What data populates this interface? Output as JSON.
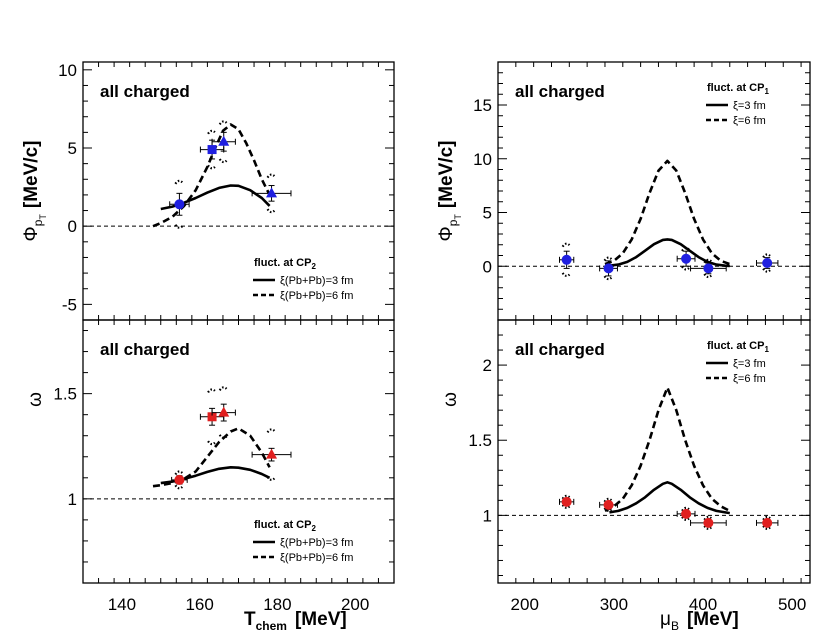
{
  "chart_data": [
    {
      "id": "top-left",
      "type": "scatter",
      "panel_label": "all charged",
      "ylabel": "Φ_pT [MeV/c]",
      "ylabel_main": "Φ",
      "ylabel_sub": "p",
      "ylabel_subsub": "T",
      "ylabel_unit": "[MeV/c]",
      "xlim": [
        130,
        210
      ],
      "ylim": [
        -6,
        10.5
      ],
      "xticks": [
        140,
        160,
        180,
        200
      ],
      "yticks": [
        -5,
        0,
        5,
        10
      ],
      "show_xtick_labels": false,
      "reference_line": 0,
      "legend": {
        "title": "fluct. at CP",
        "title_sub": "2",
        "entries": [
          "ξ(Pb+Pb)=3 fm",
          "ξ(Pb+Pb)=6 fm"
        ],
        "position": "bottom-right"
      },
      "points": [
        {
          "x": 154.8,
          "y": 1.4,
          "xerr": 2.5,
          "yerr": 0.7,
          "sys": 1.5,
          "marker": "circle",
          "color": "#1f1fe0"
        },
        {
          "x": 163.2,
          "y": 4.9,
          "xerr": 3.0,
          "yerr": 0.6,
          "sys": 1.2,
          "marker": "square",
          "color": "#1f1fe0"
        },
        {
          "x": 166.2,
          "y": 5.4,
          "xerr": 3.0,
          "yerr": 0.6,
          "sys": 1.3,
          "marker": "triangle",
          "color": "#1f1fe0"
        },
        {
          "x": 178.5,
          "y": 2.1,
          "xerr": 5.0,
          "yerr": 0.5,
          "sys": 1.2,
          "marker": "triangle",
          "color": "#1f1fe0"
        }
      ],
      "series": [
        {
          "name": "ξ(Pb+Pb)=3 fm",
          "style": "solid",
          "x": [
            150,
            153,
            156,
            159,
            162,
            165,
            168,
            170,
            173,
            176,
            178
          ],
          "y": [
            1.1,
            1.25,
            1.5,
            1.8,
            2.15,
            2.45,
            2.6,
            2.58,
            2.3,
            1.8,
            1.3
          ]
        },
        {
          "name": "ξ(Pb+Pb)=6 fm",
          "style": "dashed",
          "x": [
            148,
            150,
            153,
            156,
            159,
            162,
            164,
            166,
            168,
            170,
            172,
            174,
            176,
            178
          ],
          "y": [
            0,
            0.2,
            0.6,
            1.3,
            2.3,
            3.8,
            5.0,
            6.1,
            6.5,
            6.2,
            5.3,
            4.2,
            3.0,
            2.0
          ]
        }
      ]
    },
    {
      "id": "top-right",
      "type": "scatter",
      "panel_label": "all charged",
      "ylabel": "Φ_pT [MeV/c]",
      "ylabel_main": "Φ",
      "ylabel_sub": "p",
      "ylabel_subsub": "T",
      "ylabel_unit": "[MeV/c]",
      "xlim": [
        170,
        520
      ],
      "ylim": [
        -5,
        19
      ],
      "xticks": [
        200,
        300,
        400,
        500
      ],
      "yticks": [
        0,
        5,
        10,
        15
      ],
      "show_xtick_labels": false,
      "reference_line": 0,
      "legend": {
        "title": "fluct. at CP",
        "title_sub": "1",
        "entries": [
          "ξ=3 fm",
          "ξ=6 fm"
        ],
        "position": "top-right"
      },
      "points": [
        {
          "x": 247,
          "y": 0.6,
          "xerr": 8,
          "yerr": 0.8,
          "sys": 1.5,
          "marker": "circle",
          "color": "#1f1fe0"
        },
        {
          "x": 294,
          "y": -0.2,
          "xerr": 10,
          "yerr": 0.7,
          "sys": 1.0,
          "marker": "circle",
          "color": "#1f1fe0"
        },
        {
          "x": 381,
          "y": 0.7,
          "xerr": 10,
          "yerr": 0.7,
          "sys": 1.0,
          "marker": "circle",
          "color": "#1f1fe0"
        },
        {
          "x": 406,
          "y": -0.2,
          "xerr": 20,
          "yerr": 0.5,
          "sys": 0.8,
          "marker": "circle",
          "color": "#1f1fe0"
        },
        {
          "x": 472,
          "y": 0.3,
          "xerr": 12,
          "yerr": 0.5,
          "sys": 0.8,
          "marker": "circle",
          "color": "#1f1fe0"
        }
      ],
      "series": [
        {
          "name": "ξ=3 fm",
          "style": "solid",
          "x": [
            295,
            305,
            315,
            325,
            335,
            345,
            355,
            360,
            365,
            375,
            385,
            395,
            405,
            415,
            425,
            430
          ],
          "y": [
            0.05,
            0.15,
            0.4,
            0.85,
            1.45,
            2.05,
            2.45,
            2.5,
            2.45,
            2.05,
            1.45,
            0.85,
            0.4,
            0.15,
            0.05,
            0.03
          ]
        },
        {
          "name": "ξ=6 fm",
          "style": "dashed",
          "x": [
            290,
            300,
            310,
            320,
            330,
            340,
            350,
            360,
            370,
            380,
            390,
            400,
            410,
            420,
            430
          ],
          "y": [
            0.2,
            0.5,
            1.2,
            2.5,
            4.4,
            6.8,
            8.9,
            9.8,
            8.9,
            6.8,
            4.4,
            2.5,
            1.2,
            0.5,
            0.2
          ]
        }
      ]
    },
    {
      "id": "bottom-left",
      "type": "scatter",
      "panel_label": "all charged",
      "ylabel": "ω",
      "xlabel": "T_chem [MeV]",
      "xlabel_main": "T",
      "xlabel_sub": "chem",
      "xlabel_unit": "[MeV]",
      "xlim": [
        130,
        210
      ],
      "ylim": [
        0.6,
        1.85
      ],
      "xticks": [
        140,
        160,
        180,
        200
      ],
      "xtick_labels": [
        "140",
        "160",
        "180",
        "200"
      ],
      "yticks": [
        1,
        1.5
      ],
      "ytick_labels": [
        "1",
        "1.5"
      ],
      "show_xtick_labels": true,
      "reference_line": 1,
      "legend": {
        "title": "fluct. at CP",
        "title_sub": "2",
        "entries": [
          "ξ(Pb+Pb)=3 fm",
          "ξ(Pb+Pb)=6 fm"
        ],
        "position": "bottom-right"
      },
      "points": [
        {
          "x": 154.8,
          "y": 1.09,
          "xerr": 2.0,
          "yerr": 0.02,
          "sys": 0.04,
          "marker": "circle",
          "color": "#e01f1f"
        },
        {
          "x": 163.2,
          "y": 1.39,
          "xerr": 3.0,
          "yerr": 0.04,
          "sys": 0.13,
          "marker": "square",
          "color": "#e01f1f"
        },
        {
          "x": 166.2,
          "y": 1.41,
          "xerr": 3.0,
          "yerr": 0.04,
          "sys": 0.12,
          "marker": "triangle",
          "color": "#e01f1f"
        },
        {
          "x": 178.5,
          "y": 1.21,
          "xerr": 5.0,
          "yerr": 0.03,
          "sys": 0.12,
          "marker": "triangle",
          "color": "#e01f1f"
        }
      ],
      "series": [
        {
          "name": "ξ(Pb+Pb)=3 fm",
          "style": "solid",
          "x": [
            150,
            153,
            156,
            159,
            162,
            165,
            168,
            170,
            173,
            176,
            178
          ],
          "y": [
            1.075,
            1.082,
            1.095,
            1.11,
            1.128,
            1.143,
            1.15,
            1.148,
            1.138,
            1.118,
            1.1
          ]
        },
        {
          "name": "ξ(Pb+Pb)=6 fm",
          "style": "dashed",
          "x": [
            148,
            150,
            153,
            156,
            159,
            162,
            165,
            168,
            170,
            173,
            176,
            178
          ],
          "y": [
            1.06,
            1.065,
            1.075,
            1.095,
            1.13,
            1.2,
            1.27,
            1.32,
            1.335,
            1.3,
            1.22,
            1.15
          ]
        }
      ]
    },
    {
      "id": "bottom-right",
      "type": "scatter",
      "panel_label": "all charged",
      "ylabel": "ω",
      "xlabel": "μ_B [MeV]",
      "xlabel_main": "μ",
      "xlabel_sub": "B",
      "xlabel_unit": "[MeV]",
      "xlim": [
        170,
        520
      ],
      "ylim": [
        0.55,
        2.3
      ],
      "xticks": [
        200,
        300,
        400,
        500
      ],
      "xtick_labels": [
        "200",
        "300",
        "400",
        "500"
      ],
      "yticks": [
        1,
        1.5,
        2
      ],
      "ytick_labels": [
        "1",
        "1.5",
        "2"
      ],
      "show_xtick_labels": true,
      "reference_line": 1,
      "legend": {
        "title": "fluct. at CP",
        "title_sub": "1",
        "entries": [
          "ξ=3 fm",
          "ξ=6 fm"
        ],
        "position": "top-right"
      },
      "points": [
        {
          "x": 247,
          "y": 1.09,
          "xerr": 8,
          "yerr": 0.02,
          "sys": 0.04,
          "marker": "circle",
          "color": "#e01f1f"
        },
        {
          "x": 294,
          "y": 1.07,
          "xerr": 10,
          "yerr": 0.02,
          "sys": 0.04,
          "marker": "circle",
          "color": "#e01f1f"
        },
        {
          "x": 381,
          "y": 1.01,
          "xerr": 10,
          "yerr": 0.02,
          "sys": 0.04,
          "marker": "circle",
          "color": "#e01f1f"
        },
        {
          "x": 406,
          "y": 0.95,
          "xerr": 20,
          "yerr": 0.02,
          "sys": 0.04,
          "marker": "circle",
          "color": "#e01f1f"
        },
        {
          "x": 472,
          "y": 0.95,
          "xerr": 12,
          "yerr": 0.02,
          "sys": 0.04,
          "marker": "circle",
          "color": "#e01f1f"
        }
      ],
      "series": [
        {
          "name": "ξ=3 fm",
          "style": "solid",
          "x": [
            295,
            305,
            315,
            325,
            335,
            345,
            355,
            360,
            365,
            375,
            385,
            395,
            405,
            415,
            425,
            430
          ],
          "y": [
            1.02,
            1.03,
            1.05,
            1.08,
            1.12,
            1.17,
            1.21,
            1.22,
            1.21,
            1.17,
            1.12,
            1.08,
            1.05,
            1.03,
            1.02,
            1.015
          ]
        },
        {
          "name": "ξ=6 fm",
          "style": "dashed",
          "x": [
            290,
            300,
            310,
            320,
            330,
            340,
            350,
            360,
            370,
            380,
            390,
            400,
            410,
            420,
            430
          ],
          "y": [
            1.03,
            1.06,
            1.11,
            1.2,
            1.33,
            1.5,
            1.7,
            1.85,
            1.7,
            1.5,
            1.33,
            1.2,
            1.11,
            1.06,
            1.03
          ]
        }
      ]
    }
  ]
}
